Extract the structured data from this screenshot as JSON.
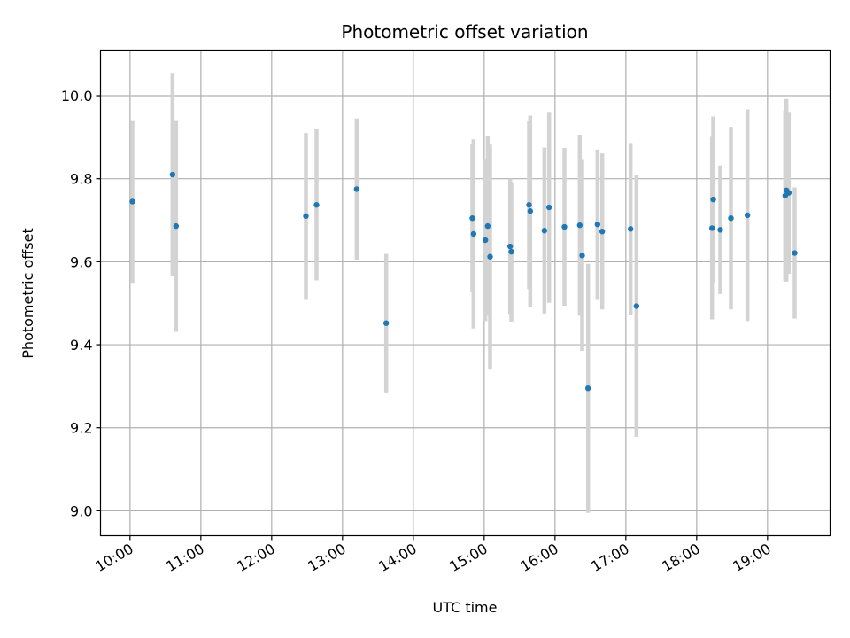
{
  "chart_data": {
    "type": "scatter",
    "title": "Photometric offset variation",
    "xlabel": "UTC time",
    "ylabel": "Photometric offset",
    "x_ticks": [
      "10:00",
      "11:00",
      "12:00",
      "13:00",
      "14:00",
      "15:00",
      "16:00",
      "17:00",
      "18:00",
      "19:00"
    ],
    "y_ticks": [
      "9.0",
      "9.2",
      "9.4",
      "9.6",
      "9.8",
      "10.0"
    ],
    "xlim": [
      "09:35",
      "19:53"
    ],
    "ylim": [
      8.94,
      10.11
    ],
    "grid": true,
    "colors": {
      "point": "#1f77b4",
      "errorbar": "#d3d3d3",
      "grid": "#b0b0b0"
    },
    "series": [
      {
        "points": [
          {
            "t": "10:02",
            "y": 9.745,
            "err": 0.196
          },
          {
            "t": "10:36",
            "y": 9.81,
            "err": 0.245
          },
          {
            "t": "10:39",
            "y": 9.686,
            "err": 0.255
          },
          {
            "t": "12:29",
            "y": 9.71,
            "err": 0.2
          },
          {
            "t": "12:38",
            "y": 9.737,
            "err": 0.182
          },
          {
            "t": "13:12",
            "y": 9.775,
            "err": 0.17
          },
          {
            "t": "13:37",
            "y": 9.452,
            "err": 0.167
          },
          {
            "t": "14:50",
            "y": 9.705,
            "err": 0.178
          },
          {
            "t": "14:51",
            "y": 9.667,
            "err": 0.228
          },
          {
            "t": "15:01",
            "y": 9.652,
            "err": 0.195
          },
          {
            "t": "15:03",
            "y": 9.686,
            "err": 0.216
          },
          {
            "t": "15:05",
            "y": 9.612,
            "err": 0.27
          },
          {
            "t": "15:22",
            "y": 9.637,
            "err": 0.163
          },
          {
            "t": "15:23",
            "y": 9.624,
            "err": 0.168
          },
          {
            "t": "15:38",
            "y": 9.737,
            "err": 0.203
          },
          {
            "t": "15:39",
            "y": 9.722,
            "err": 0.23
          },
          {
            "t": "15:51",
            "y": 9.675,
            "err": 0.2
          },
          {
            "t": "15:55",
            "y": 9.731,
            "err": 0.23
          },
          {
            "t": "16:08",
            "y": 9.684,
            "err": 0.19
          },
          {
            "t": "16:21",
            "y": 9.688,
            "err": 0.218
          },
          {
            "t": "16:23",
            "y": 9.615,
            "err": 0.23
          },
          {
            "t": "16:28",
            "y": 9.295,
            "err": 0.3
          },
          {
            "t": "16:36",
            "y": 9.69,
            "err": 0.18
          },
          {
            "t": "16:40",
            "y": 9.673,
            "err": 0.188
          },
          {
            "t": "17:04",
            "y": 9.679,
            "err": 0.207
          },
          {
            "t": "17:09",
            "y": 9.493,
            "err": 0.315
          },
          {
            "t": "18:13",
            "y": 9.681,
            "err": 0.22
          },
          {
            "t": "18:14",
            "y": 9.75,
            "err": 0.2
          },
          {
            "t": "18:20",
            "y": 9.677,
            "err": 0.155
          },
          {
            "t": "18:29",
            "y": 9.705,
            "err": 0.22
          },
          {
            "t": "18:43",
            "y": 9.712,
            "err": 0.255
          },
          {
            "t": "19:15",
            "y": 9.759,
            "err": 0.205
          },
          {
            "t": "19:16",
            "y": 9.772,
            "err": 0.22
          },
          {
            "t": "19:18",
            "y": 9.766,
            "err": 0.195
          },
          {
            "t": "19:23",
            "y": 9.621,
            "err": 0.158
          }
        ]
      }
    ]
  }
}
